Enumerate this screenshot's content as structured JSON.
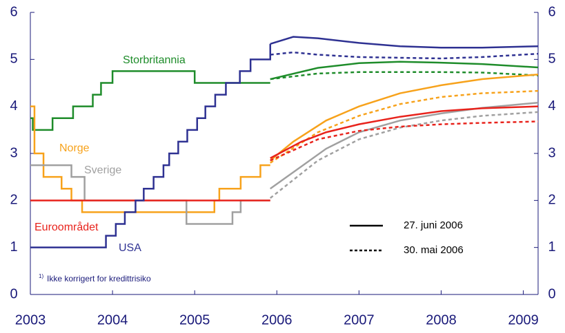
{
  "chart_data": {
    "type": "line",
    "xlim": [
      2003,
      2009.18
    ],
    "xticks": [
      2003,
      2004,
      2005,
      2006,
      2007,
      2008,
      2009
    ],
    "ylim": [
      0,
      6
    ],
    "yticks": [
      0,
      1,
      2,
      3,
      4,
      5,
      6
    ],
    "y2lim": [
      0,
      6
    ],
    "y2ticks": [
      0,
      1,
      2,
      3,
      4,
      5,
      6
    ],
    "footnote_mark": "1)",
    "footnote": "Ikke korrigert for kredittrisiko",
    "legend": [
      {
        "label": "27. juni 2006",
        "dash": false
      },
      {
        "label": "30. mai 2006",
        "dash": true
      }
    ],
    "series": [
      {
        "name": "Storbritannia",
        "color": "#1e8c2a",
        "step": true,
        "x": [
          2003.0,
          2003.03,
          2003.27,
          2003.52,
          2003.76,
          2003.86,
          2004.0,
          2005.0,
          2005.92
        ],
        "values": [
          3.75,
          3.5,
          3.75,
          4.0,
          4.25,
          4.5,
          4.75,
          4.5,
          4.5
        ]
      },
      {
        "color": "#1e8c2a",
        "x": [
          2005.92,
          2006.5,
          2007,
          2007.5,
          2008,
          2008.5,
          2009.18
        ],
        "values": [
          4.58,
          4.82,
          4.92,
          4.95,
          4.93,
          4.9,
          4.83
        ]
      },
      {
        "color": "#1e8c2a",
        "dash": true,
        "x": [
          2005.92,
          2006.5,
          2007,
          2008,
          2008.5,
          2009.18
        ],
        "values": [
          4.58,
          4.7,
          4.73,
          4.73,
          4.72,
          4.66
        ]
      },
      {
        "name": "Norge",
        "color": "#f7a21b",
        "step": true,
        "x": [
          2003.0,
          2003.05,
          2003.16,
          2003.38,
          2003.5,
          2003.63,
          2005.24,
          2005.3,
          2005.56,
          2005.8,
          2005.92
        ],
        "values": [
          4.0,
          3.0,
          2.5,
          2.25,
          2.0,
          1.75,
          2.0,
          2.25,
          2.5,
          2.75,
          2.75
        ]
      },
      {
        "color": "#f7a21b",
        "x": [
          2005.92,
          2006.2,
          2006.6,
          2007,
          2007.5,
          2008,
          2008.5,
          2009.18
        ],
        "values": [
          2.85,
          3.25,
          3.7,
          4.0,
          4.28,
          4.45,
          4.58,
          4.68
        ]
      },
      {
        "color": "#f7a21b",
        "dash": true,
        "x": [
          2005.92,
          2006.5,
          2007,
          2007.5,
          2008,
          2008.5,
          2009.18
        ],
        "values": [
          2.8,
          3.45,
          3.8,
          4.05,
          4.2,
          4.28,
          4.33
        ]
      },
      {
        "name": "Sverige",
        "color": "#a0a0a0",
        "step": true,
        "x": [
          2003.0,
          2003.5,
          2003.66,
          2004.9,
          2005.46,
          2005.56,
          2005.92
        ],
        "values": [
          2.75,
          2.5,
          2.0,
          1.5,
          1.75,
          2.0,
          2.0
        ]
      },
      {
        "color": "#a0a0a0",
        "x": [
          2005.92,
          2006.2,
          2006.6,
          2007,
          2007.5,
          2008,
          2008.5,
          2009.18
        ],
        "values": [
          2.25,
          2.6,
          3.1,
          3.45,
          3.7,
          3.85,
          3.97,
          4.08
        ]
      },
      {
        "color": "#a0a0a0",
        "dash": true,
        "x": [
          2005.92,
          2006.5,
          2007,
          2007.5,
          2008,
          2008.5,
          2009.18
        ],
        "values": [
          2.05,
          2.85,
          3.3,
          3.55,
          3.7,
          3.8,
          3.88
        ]
      },
      {
        "name": "Euroområdet",
        "color": "#e8231c",
        "step": true,
        "x": [
          2003.0,
          2005.92
        ],
        "values": [
          2.0,
          2.0
        ]
      },
      {
        "color": "#e8231c",
        "x": [
          2005.92,
          2006.3,
          2006.6,
          2007,
          2007.5,
          2008,
          2008.5,
          2009.18
        ],
        "values": [
          2.9,
          3.25,
          3.45,
          3.62,
          3.78,
          3.9,
          3.96,
          4.0
        ]
      },
      {
        "color": "#e8231c",
        "dash": true,
        "x": [
          2005.92,
          2006.5,
          2007,
          2007.5,
          2008,
          2008.5,
          2009.18
        ],
        "values": [
          2.85,
          3.3,
          3.48,
          3.57,
          3.62,
          3.65,
          3.68
        ]
      },
      {
        "name": "USA",
        "color": "#2e3192",
        "step": true,
        "x": [
          2003.0,
          2003.92,
          2004.04,
          2004.15,
          2004.28,
          2004.38,
          2004.5,
          2004.62,
          2004.69,
          2004.8,
          2004.91,
          2005.03,
          2005.13,
          2005.25,
          2005.38,
          2005.55,
          2005.68,
          2005.81,
          2005.92
        ],
        "values": [
          1.0,
          1.25,
          1.5,
          1.75,
          2.0,
          2.25,
          2.5,
          2.75,
          3.0,
          3.25,
          3.5,
          3.75,
          4.0,
          4.25,
          4.5,
          4.75,
          5.0,
          5.0,
          5.33
        ]
      },
      {
        "color": "#2e3192",
        "x": [
          2005.92,
          2006.2,
          2006.5,
          2007,
          2007.5,
          2008,
          2008.5,
          2009.18
        ],
        "values": [
          5.33,
          5.48,
          5.45,
          5.35,
          5.28,
          5.25,
          5.25,
          5.28
        ]
      },
      {
        "color": "#2e3192",
        "dash": true,
        "x": [
          2005.92,
          2006.2,
          2006.5,
          2007,
          2008,
          2008.5,
          2009.18
        ],
        "values": [
          5.1,
          5.15,
          5.1,
          5.05,
          5.02,
          5.05,
          5.12
        ]
      }
    ]
  }
}
